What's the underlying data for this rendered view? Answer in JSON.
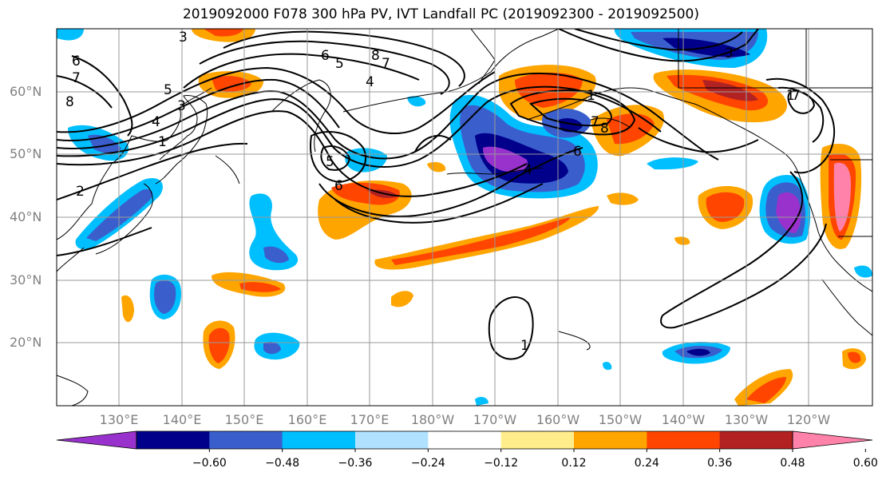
{
  "title": "2019092000 F078 300 hPa PV, IVT Landfall PC (2019092300 - 2019092500)",
  "lat_labels": [
    "60°N",
    "50°N",
    "40°N",
    "30°N",
    "20°N"
  ],
  "lon_labels": [
    "130°E",
    "140°E",
    "150°E",
    "160°E",
    "170°E",
    "180°W",
    "170°W",
    "160°W",
    "150°W",
    "140°W",
    "130°W",
    "120°W"
  ],
  "colorbar": {
    "ticks": [
      "−0.60",
      "−0.48",
      "−0.36",
      "−0.24",
      "−0.12",
      "0.12",
      "0.24",
      "0.36",
      "0.48",
      "0.60"
    ],
    "colors": [
      "#9932cc",
      "#00008b",
      "#3a5fcd",
      "#00bfff",
      "#b0e2ff",
      "#ffffff",
      "#ffec8b",
      "#ffa500",
      "#ff4500",
      "#b22222",
      "#ff82ab"
    ]
  },
  "contour_labels": [
    "3",
    "6",
    "7",
    "8",
    "5",
    "3",
    "4",
    "1",
    "2",
    "6",
    "5",
    "4",
    "8",
    "7",
    "1",
    "7",
    "8",
    "6",
    "4",
    "5",
    "6",
    "3",
    "1",
    "7",
    "1"
  ]
}
